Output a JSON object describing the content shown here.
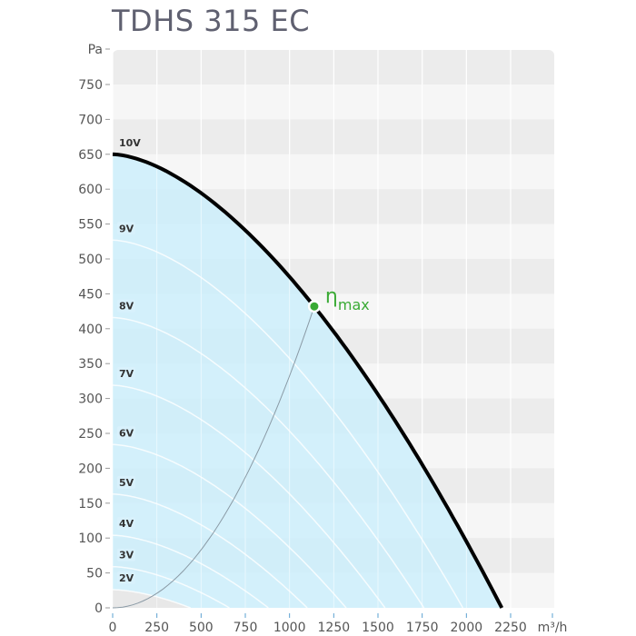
{
  "chart_data": {
    "type": "line",
    "title": "TDHS 315 EC",
    "xlabel": "m³/h",
    "ylabel": "Pa",
    "xlim": [
      0,
      2250
    ],
    "ylim": [
      0,
      750
    ],
    "x_ticks": [
      0,
      250,
      500,
      750,
      1000,
      1250,
      1500,
      1750,
      2000,
      2250
    ],
    "y_ticks": [
      0,
      50,
      100,
      150,
      200,
      250,
      300,
      350,
      400,
      450,
      500,
      550,
      600,
      650,
      700,
      750
    ],
    "grid": true,
    "series": [
      {
        "name": "10V",
        "max_pressure": 650,
        "max_flow": 2200
      },
      {
        "name": "9V",
        "max_pressure": 527,
        "max_flow": 1980
      },
      {
        "name": "8V",
        "max_pressure": 416,
        "max_flow": 1760
      },
      {
        "name": "7V",
        "max_pressure": 319,
        "max_flow": 1540
      },
      {
        "name": "6V",
        "max_pressure": 234,
        "max_flow": 1320
      },
      {
        "name": "5V",
        "max_pressure": 163,
        "max_flow": 1100
      },
      {
        "name": "4V",
        "max_pressure": 104,
        "max_flow": 880
      },
      {
        "name": "3V",
        "max_pressure": 59,
        "max_flow": 660
      },
      {
        "name": "2V",
        "max_pressure": 26,
        "max_flow": 440
      }
    ],
    "efficiency_point": {
      "label": "η",
      "label_sub": "max",
      "x": 1140,
      "y": 432
    },
    "colors": {
      "fill": "#cdeefc",
      "curve": "#000000",
      "subcurves": "#ffffff",
      "point": "#3aaa35",
      "system_curve": "#8a9aa5"
    }
  }
}
